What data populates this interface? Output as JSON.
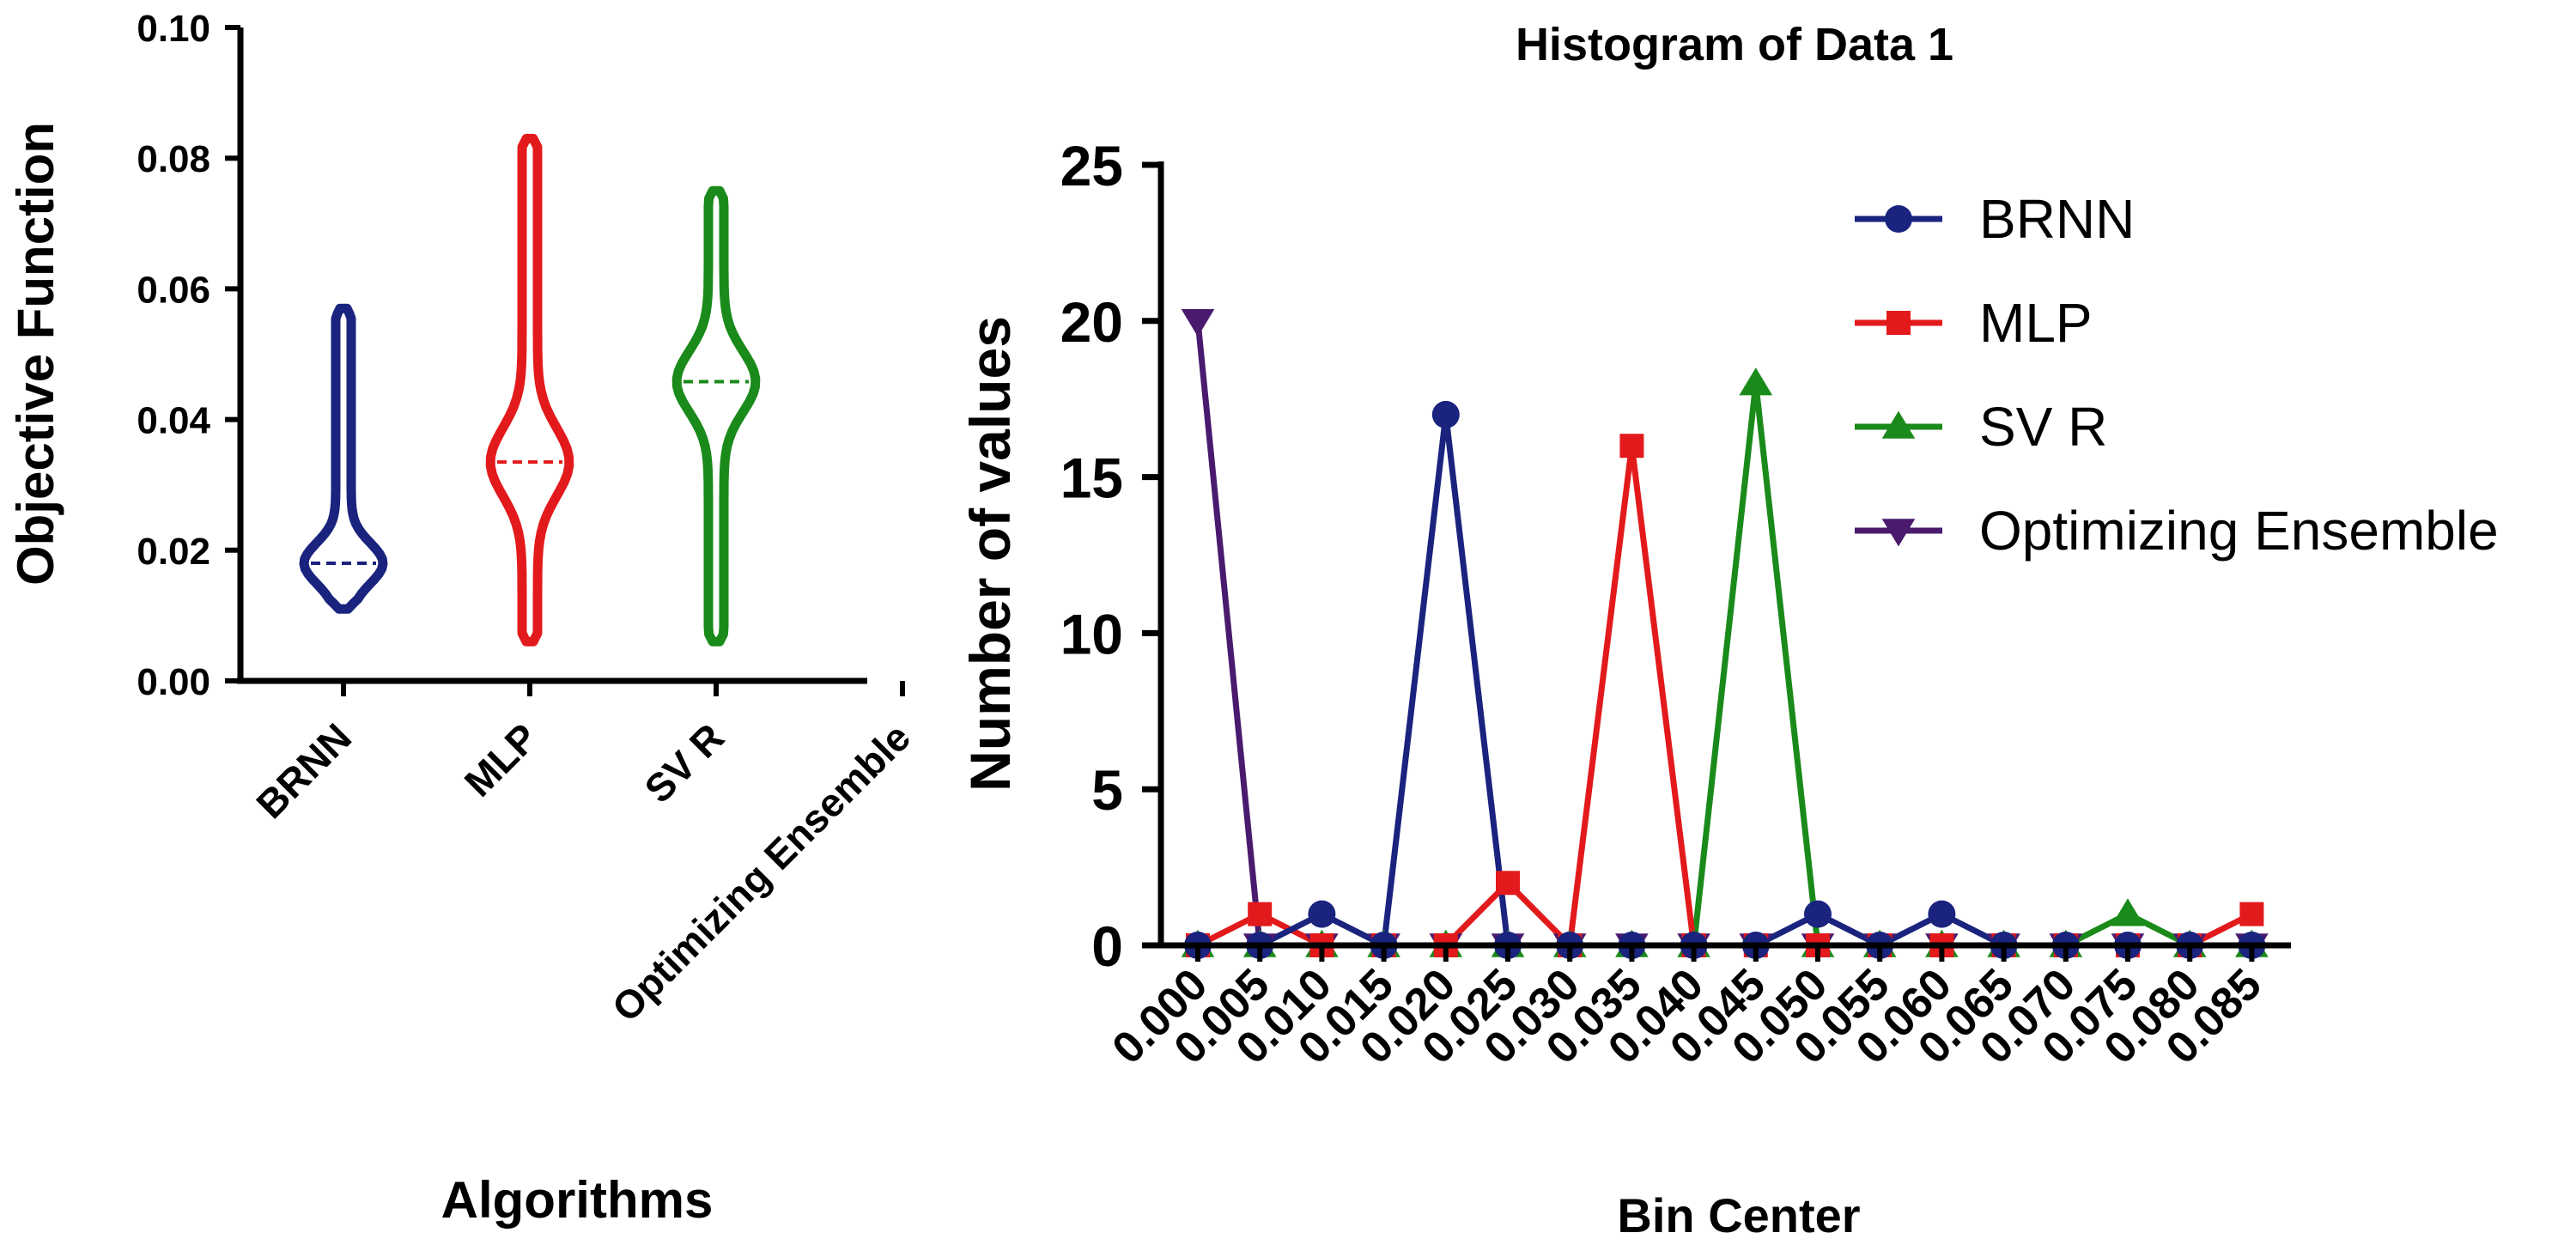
{
  "chart_data": [
    {
      "type": "violin",
      "title": "",
      "xlabel": "Algorithms",
      "ylabel": "Objective Function",
      "ylim": [
        0,
        0.1
      ],
      "yticks": [
        "0.00",
        "0.02",
        "0.04",
        "0.06",
        "0.08",
        "0.10"
      ],
      "categories": [
        "BRNN",
        "MLP",
        "SV R",
        "Optimizing Ensemble"
      ],
      "series": [
        {
          "name": "BRNN",
          "color": "#1a237e",
          "min": 0.011,
          "max": 0.057,
          "median": 0.018
        },
        {
          "name": "MLP",
          "color": "#e31a1c",
          "min": 0.006,
          "max": 0.083,
          "median": 0.0335
        },
        {
          "name": "SV R",
          "color": "#1a8a1a",
          "min": 0.006,
          "max": 0.075,
          "median": 0.0458
        },
        {
          "name": "Optimizing Ensemble",
          "color": "#4a1a6e",
          "min": null,
          "max": null,
          "median": null
        }
      ]
    },
    {
      "type": "line",
      "title": "Histogram of Data 1",
      "xlabel": "Bin Center",
      "ylabel": "Number of values",
      "ylim": [
        0,
        25
      ],
      "yticks": [
        "0",
        "5",
        "10",
        "15",
        "20",
        "25"
      ],
      "x": [
        "0.000",
        "0.005",
        "0.010",
        "0.015",
        "0.020",
        "0.025",
        "0.030",
        "0.035",
        "0.040",
        "0.045",
        "0.050",
        "0.055",
        "0.060",
        "0.065",
        "0.070",
        "0.075",
        "0.080",
        "0.085"
      ],
      "legend_position": "top-right",
      "series": [
        {
          "name": "BRNN",
          "color": "#1a237e",
          "marker": "circle",
          "values": [
            0,
            0,
            1,
            0,
            17,
            0,
            0,
            0,
            0,
            0,
            1,
            0,
            1,
            0,
            0,
            0,
            0,
            0
          ]
        },
        {
          "name": "MLP",
          "color": "#e31a1c",
          "marker": "square",
          "values": [
            0,
            1,
            0,
            0,
            0,
            2,
            0,
            16,
            0,
            0,
            0,
            0,
            0,
            0,
            0,
            0,
            0,
            1
          ]
        },
        {
          "name": "SV R",
          "color": "#1a8a1a",
          "marker": "triangle-up",
          "values": [
            0,
            0,
            0,
            0,
            0,
            0,
            0,
            0,
            0,
            18,
            0,
            0,
            0,
            0,
            0,
            1,
            0,
            0
          ]
        },
        {
          "name": "Optimizing Ensemble",
          "color": "#4a1a6e",
          "marker": "triangle-down",
          "values": [
            20,
            0,
            0,
            0,
            0,
            0,
            0,
            0,
            0,
            0,
            0,
            0,
            0,
            0,
            0,
            0,
            0,
            0
          ]
        }
      ]
    }
  ]
}
